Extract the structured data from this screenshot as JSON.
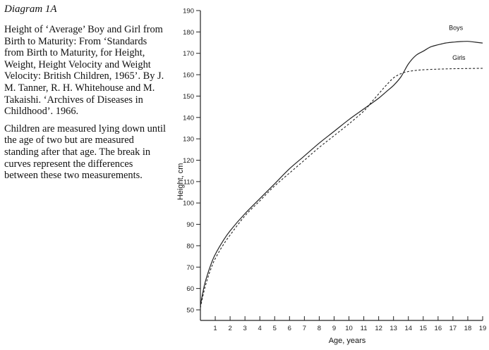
{
  "caption": {
    "label": "Diagram 1A",
    "paragraph1": "Height of ‘Average’ Boy and Girl from Birth to Maturity: From ‘Standards from Birth to Maturity, for Height, Weight, Height Velocity and Weight Velocity: British Children, 1965’. By J. M. Tanner, R. H. Whitehouse and M. Takaishi. ‘Archives of Diseases in Childhood’. 1966.",
    "paragraph2": "Children are measured lying down until the age of two but are measured standing after that age. The break in curves represent the differences between these two measurements."
  },
  "chart_data": {
    "type": "line",
    "xlabel": "Age, years",
    "ylabel": "Height, cm",
    "xlim": [
      0,
      19
    ],
    "ylim": [
      45,
      190
    ],
    "xticks": [
      1,
      2,
      3,
      4,
      5,
      6,
      7,
      8,
      9,
      10,
      11,
      12,
      13,
      14,
      15,
      16,
      17,
      18,
      19
    ],
    "yticks": [
      50,
      60,
      70,
      80,
      90,
      100,
      110,
      120,
      130,
      140,
      150,
      160,
      170,
      180,
      190
    ],
    "grid": false,
    "series": [
      {
        "name": "Boys",
        "style": "solid",
        "x": [
          0,
          0.25,
          0.5,
          0.75,
          1,
          1.5,
          2,
          3,
          4,
          5,
          6,
          7,
          8,
          9,
          10,
          11,
          12,
          12.5,
          13,
          13.5,
          14,
          14.5,
          15,
          15.5,
          16,
          16.5,
          17,
          17.5,
          18,
          18.5,
          19
        ],
        "y": [
          52,
          61,
          67,
          72,
          76,
          82,
          87,
          95,
          102,
          109,
          116,
          122,
          128,
          133.5,
          139,
          144,
          149,
          152,
          155,
          159,
          165,
          169,
          171,
          173,
          174,
          174.8,
          175.2,
          175.5,
          175.6,
          175.2,
          174.8
        ]
      },
      {
        "name": "Girls",
        "style": "dashed",
        "x": [
          0,
          0.25,
          0.5,
          0.75,
          1,
          1.5,
          2,
          3,
          4,
          5,
          6,
          7,
          8,
          9,
          10,
          11,
          11.5,
          12,
          12.5,
          13,
          13.5,
          14,
          14.5,
          15,
          16,
          17,
          18,
          19
        ],
        "y": [
          51,
          59,
          65,
          70,
          74,
          80,
          85,
          94,
          101,
          108,
          114,
          120,
          126,
          131.5,
          137,
          143,
          147,
          151,
          155,
          158.5,
          160.5,
          161.5,
          162,
          162.3,
          162.6,
          162.8,
          162.9,
          163
        ]
      }
    ]
  }
}
